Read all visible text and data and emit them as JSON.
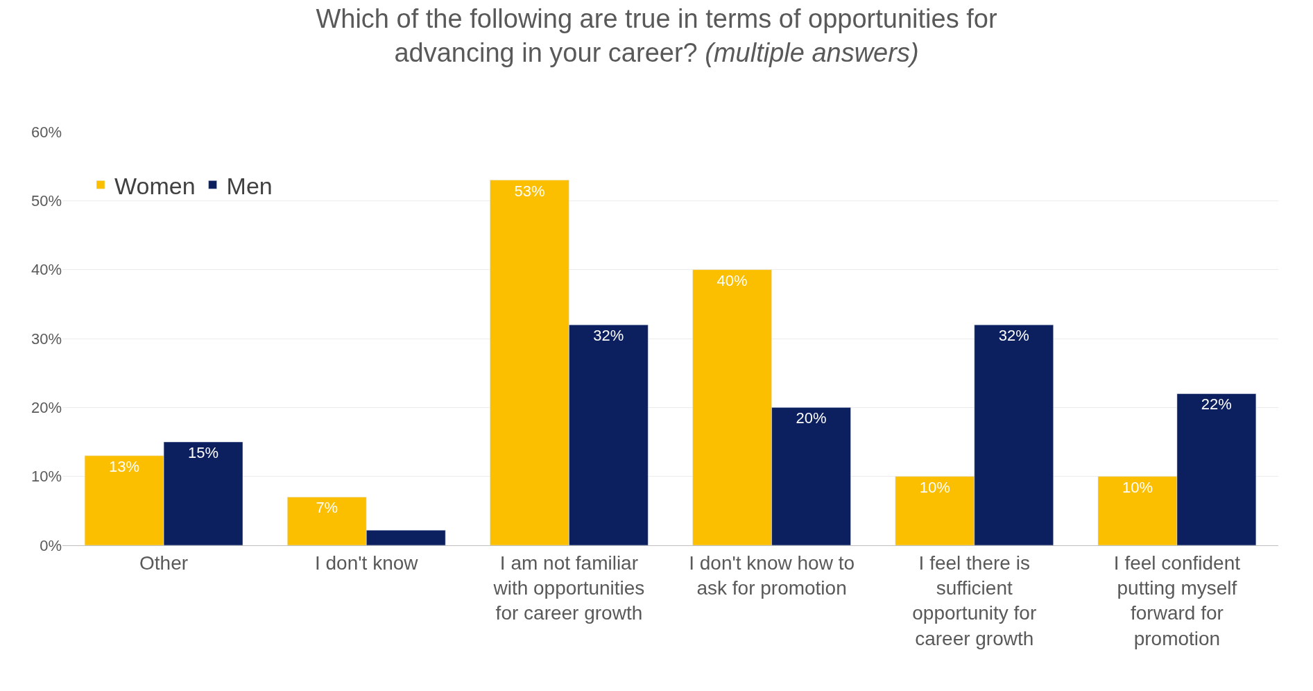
{
  "chart_data": {
    "type": "bar",
    "title": "Which of the following are true in terms of opportunities for advancing in your career?",
    "subtitle": "(multiple answers)",
    "categories": [
      "Other",
      "I don't know",
      "I am not familiar with opportunities for career growth",
      "I don't know how to ask for promotion",
      "I feel there is sufficient opportunity for career growth",
      "I feel confident putting myself forward for promotion"
    ],
    "series": [
      {
        "name": "Women",
        "color": "#fcbf00",
        "values": [
          13,
          7,
          53,
          40,
          10,
          10
        ],
        "value_labels": [
          "13%",
          "7%",
          "53%",
          "40%",
          "10%",
          "10%"
        ]
      },
      {
        "name": "Men",
        "color": "#0c1f5e",
        "values": [
          15,
          2.2,
          32,
          20,
          32,
          22
        ],
        "value_labels": [
          "15%",
          null,
          "32%",
          "20%",
          "32%",
          "22%"
        ]
      }
    ],
    "ylim": [
      0,
      60
    ],
    "yticks": [
      {
        "value": 0,
        "label": "0%"
      },
      {
        "value": 10,
        "label": "10%"
      },
      {
        "value": 20,
        "label": "20%"
      },
      {
        "value": 30,
        "label": "30%"
      },
      {
        "value": 40,
        "label": "40%"
      },
      {
        "value": 50,
        "label": "50%"
      },
      {
        "value": 60,
        "label": "60%"
      }
    ],
    "grid": "y",
    "legend": "top left"
  }
}
